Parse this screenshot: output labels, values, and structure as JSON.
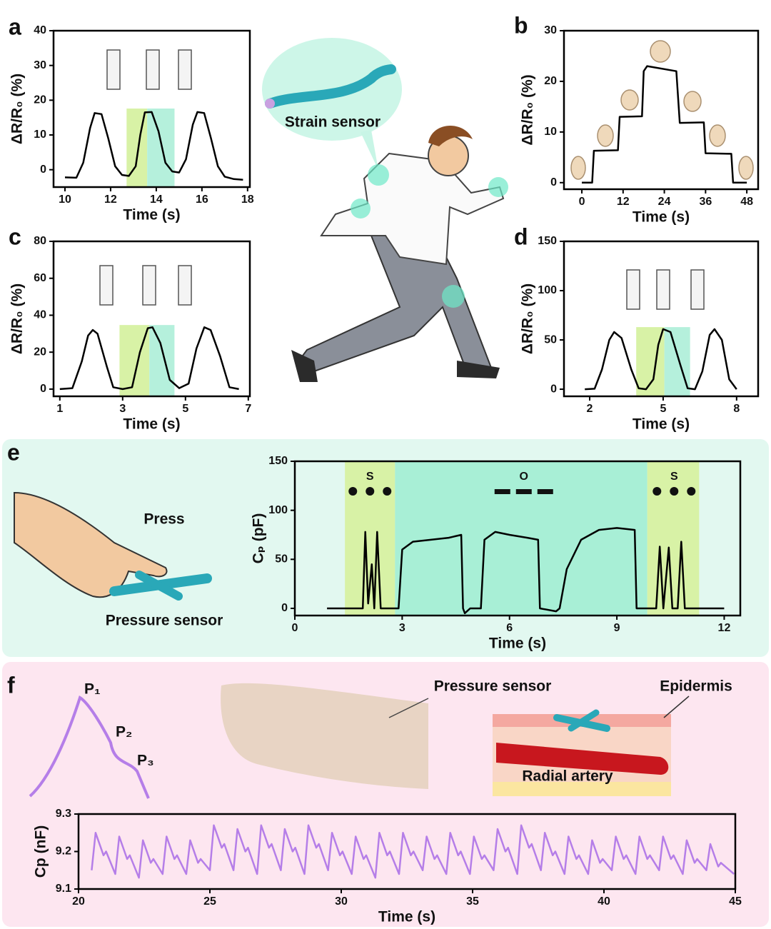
{
  "chart_data": [
    {
      "type": "line",
      "panel": "a",
      "xlabel": "Time (s)",
      "ylabel": "ΔR/R₀ (%)",
      "color": "#000000",
      "xlim": [
        9.5,
        18.1
      ],
      "ylim": [
        -5,
        40
      ],
      "xticks": [
        10,
        12,
        14,
        16,
        18
      ],
      "yticks": [
        0,
        10,
        20,
        30,
        40
      ],
      "bands": [
        {
          "from": 12.7,
          "to": 13.6,
          "top": 17.6,
          "color": "#d8f2a6"
        },
        {
          "from": 13.6,
          "to": 14.8,
          "top": 17.6,
          "color": "#b5f0dc"
        }
      ],
      "x": [
        10,
        10.5,
        10.8,
        11.1,
        11.3,
        11.6,
        11.9,
        12.2,
        12.5,
        12.8,
        13.1,
        13.3,
        13.5,
        13.8,
        14.1,
        14.4,
        14.7,
        15.0,
        15.3,
        15.6,
        15.8,
        16.1,
        16.4,
        16.7,
        17.0,
        17.4,
        17.8
      ],
      "values": [
        -2.2,
        -2.3,
        2,
        12,
        16.3,
        16,
        9,
        1,
        -1.5,
        -1.8,
        1,
        10,
        16.5,
        16.6,
        11,
        2,
        -0.5,
        -0.8,
        3,
        13,
        16.6,
        16.3,
        9,
        1,
        -2,
        -2.7,
        -2.9
      ]
    },
    {
      "type": "line",
      "panel": "b",
      "xlabel": "Time (s)",
      "ylabel": "ΔR/R₀ (%)",
      "color": "#000000",
      "xlim": [
        -5.2,
        51.3
      ],
      "ylim": [
        -1.3,
        30
      ],
      "xticks": [
        0,
        12,
        24,
        36,
        48
      ],
      "yticks": [
        0,
        10,
        20,
        30
      ],
      "bands": [],
      "x": [
        0,
        3,
        3.5,
        10.5,
        11,
        17.5,
        18,
        19,
        27.5,
        28.5,
        35.5,
        36,
        43.5,
        44,
        48
      ],
      "values": [
        0,
        0,
        6.3,
        6.4,
        13,
        13.1,
        22,
        23,
        22,
        11.8,
        11.9,
        5.8,
        5.7,
        0,
        0
      ]
    },
    {
      "type": "line",
      "panel": "c",
      "xlabel": "Time (s)",
      "ylabel": "ΔR/R₀ (%)",
      "color": "#000000",
      "xlim": [
        0.8,
        7.05
      ],
      "ylim": [
        -3.9,
        80
      ],
      "xticks": [
        1,
        3,
        5,
        7
      ],
      "yticks": [
        0,
        20,
        40,
        60,
        80
      ],
      "bands": [
        {
          "from": 2.9,
          "to": 3.85,
          "top": 34.7,
          "color": "#d8f2a6"
        },
        {
          "from": 3.85,
          "to": 4.65,
          "top": 34.7,
          "color": "#b5f0dc"
        }
      ],
      "x": [
        1,
        1.4,
        1.7,
        1.9,
        2.05,
        2.2,
        2.5,
        2.7,
        3.0,
        3.3,
        3.55,
        3.8,
        3.95,
        4.2,
        4.5,
        4.8,
        5.1,
        5.35,
        5.6,
        5.8,
        6.1,
        6.4,
        6.7
      ],
      "values": [
        0,
        0.5,
        15,
        29,
        32,
        30,
        12,
        1,
        0,
        1,
        20,
        33,
        33.5,
        25,
        5,
        0.5,
        3,
        22,
        33.5,
        32,
        18,
        1,
        0
      ]
    },
    {
      "type": "line",
      "panel": "d",
      "xlabel": "Time (s)",
      "ylabel": "ΔR/R₀ (%)",
      "color": "#000000",
      "xlim": [
        0.95,
        8.88
      ],
      "ylim": [
        -7.2,
        150
      ],
      "xticks": [
        2,
        5,
        8
      ],
      "yticks": [
        0,
        50,
        100,
        150
      ],
      "bands": [
        {
          "from": 3.9,
          "to": 5.05,
          "top": 63,
          "color": "#d8f2a6"
        },
        {
          "from": 5.05,
          "to": 6.1,
          "top": 63,
          "color": "#b5f0dc"
        }
      ],
      "x": [
        1.8,
        2.2,
        2.5,
        2.8,
        3.0,
        3.3,
        3.7,
        4.0,
        4.3,
        4.6,
        4.8,
        5.0,
        5.3,
        5.7,
        6.0,
        6.3,
        6.6,
        6.9,
        7.1,
        7.4,
        7.7,
        8.0
      ],
      "values": [
        0,
        0.5,
        20,
        50,
        58,
        52,
        20,
        1,
        0,
        10,
        45,
        61,
        58,
        25,
        1,
        0,
        18,
        55,
        61,
        50,
        10,
        0
      ]
    },
    {
      "type": "line",
      "panel": "e",
      "xlabel": "Time (s)",
      "ylabel": "Cₚ (pF)",
      "color": "#000000",
      "xlim": [
        0,
        12.45
      ],
      "ylim": [
        -7.3,
        150
      ],
      "xticks": [
        0,
        3,
        6,
        9,
        12
      ],
      "yticks": [
        0,
        50,
        100,
        150
      ],
      "bands": [
        {
          "from": 1.4,
          "to": 2.8,
          "top": 150,
          "color": "#d8f2a6"
        },
        {
          "from": 2.8,
          "to": 9.85,
          "top": 150,
          "color": "#a8efd6"
        },
        {
          "from": 9.85,
          "to": 11.3,
          "top": 150,
          "color": "#d8f2a6"
        }
      ],
      "annotations": [
        {
          "text": "S",
          "x": 2.1
        },
        {
          "text": "O",
          "x": 6.4
        },
        {
          "text": "S",
          "x": 10.6
        }
      ],
      "x": [
        0.9,
        1.9,
        1.97,
        2.05,
        2.15,
        2.22,
        2.3,
        2.4,
        2.5,
        2.9,
        3.0,
        3.3,
        3.8,
        4.3,
        4.65,
        4.7,
        4.75,
        4.9,
        5.2,
        5.3,
        5.6,
        6.0,
        6.5,
        6.8,
        6.85,
        7.3,
        7.4,
        7.6,
        8.0,
        8.5,
        9.0,
        9.5,
        9.55,
        10.1,
        10.2,
        10.3,
        10.45,
        10.55,
        10.7,
        10.8,
        10.9,
        12
      ],
      "values": [
        0,
        0,
        78,
        5,
        45,
        0,
        78,
        0,
        0,
        0,
        60,
        68,
        70,
        72,
        75,
        0,
        -5,
        0,
        0,
        70,
        78,
        75,
        72,
        70,
        0,
        -3,
        0,
        40,
        70,
        80,
        82,
        80,
        0,
        0,
        63,
        0,
        62,
        0,
        0,
        68,
        0,
        0
      ]
    },
    {
      "type": "line",
      "panel": "f",
      "xlabel": "Time (s)",
      "ylabel": "Cp (nF)",
      "color": "#b57ee8",
      "xlim": [
        20,
        45
      ],
      "ylim": [
        9.1,
        9.3
      ],
      "xticks": [
        20,
        25,
        30,
        35,
        40,
        45
      ],
      "yticks": [
        9.1,
        9.2,
        9.3
      ],
      "bands": [],
      "x": [
        20.5,
        20.65,
        20.95,
        21.05,
        21.4,
        21.55,
        21.85,
        21.95,
        22.3,
        22.45,
        22.75,
        22.85,
        23.2,
        23.35,
        23.65,
        23.75,
        24.1,
        24.25,
        24.55,
        24.65,
        25,
        25.15,
        25.45,
        25.55,
        25.9,
        26.05,
        26.35,
        26.45,
        26.8,
        26.95,
        27.25,
        27.35,
        27.7,
        27.85,
        28.15,
        28.25,
        28.6,
        28.75,
        29.05,
        29.15,
        29.5,
        29.65,
        29.95,
        30.05,
        30.4,
        30.55,
        30.85,
        30.95,
        31.3,
        31.45,
        31.75,
        31.85,
        32.2,
        32.35,
        32.65,
        32.75,
        33.1,
        33.25,
        33.55,
        33.65,
        34,
        34.15,
        34.45,
        34.55,
        34.9,
        35.05,
        35.35,
        35.45,
        35.8,
        35.95,
        36.25,
        36.35,
        36.7,
        36.85,
        37.15,
        37.25,
        37.6,
        37.75,
        38.05,
        38.15,
        38.5,
        38.65,
        38.95,
        39.05,
        39.4,
        39.55,
        39.85,
        39.95,
        40.3,
        40.45,
        40.75,
        40.85,
        41.2,
        41.35,
        41.65,
        41.75,
        42.1,
        42.25,
        42.55,
        42.65,
        43,
        43.15,
        43.45,
        43.55,
        43.9,
        44.05,
        44.35,
        44.45,
        44.95
      ],
      "values": [
        9.15,
        9.25,
        9.19,
        9.2,
        9.14,
        9.24,
        9.18,
        9.19,
        9.13,
        9.23,
        9.17,
        9.18,
        9.14,
        9.24,
        9.18,
        9.19,
        9.14,
        9.23,
        9.17,
        9.18,
        9.15,
        9.27,
        9.21,
        9.22,
        9.15,
        9.26,
        9.2,
        9.21,
        9.14,
        9.27,
        9.21,
        9.22,
        9.15,
        9.26,
        9.2,
        9.21,
        9.14,
        9.27,
        9.21,
        9.22,
        9.15,
        9.25,
        9.19,
        9.2,
        9.14,
        9.24,
        9.18,
        9.19,
        9.13,
        9.25,
        9.19,
        9.2,
        9.14,
        9.25,
        9.19,
        9.2,
        9.15,
        9.24,
        9.18,
        9.19,
        9.14,
        9.25,
        9.19,
        9.2,
        9.14,
        9.24,
        9.18,
        9.19,
        9.15,
        9.26,
        9.2,
        9.21,
        9.14,
        9.27,
        9.21,
        9.22,
        9.15,
        9.25,
        9.19,
        9.2,
        9.14,
        9.24,
        9.18,
        9.19,
        9.14,
        9.23,
        9.17,
        9.18,
        9.15,
        9.24,
        9.18,
        9.19,
        9.14,
        9.24,
        9.18,
        9.19,
        9.15,
        9.24,
        9.18,
        9.19,
        9.14,
        9.23,
        9.17,
        9.18,
        9.15,
        9.22,
        9.16,
        9.17,
        9.14
      ]
    }
  ],
  "illustration_labels": {
    "strain_sensor": "Strain sensor",
    "press": "Press",
    "pressure_sensor_e": "Pressure sensor",
    "pressure_sensor_f": "Pressure sensor",
    "epidermis": "Epidermis",
    "radial_artery": "Radial artery",
    "p1": "P₁",
    "p2": "P₂",
    "p3": "P₃"
  }
}
